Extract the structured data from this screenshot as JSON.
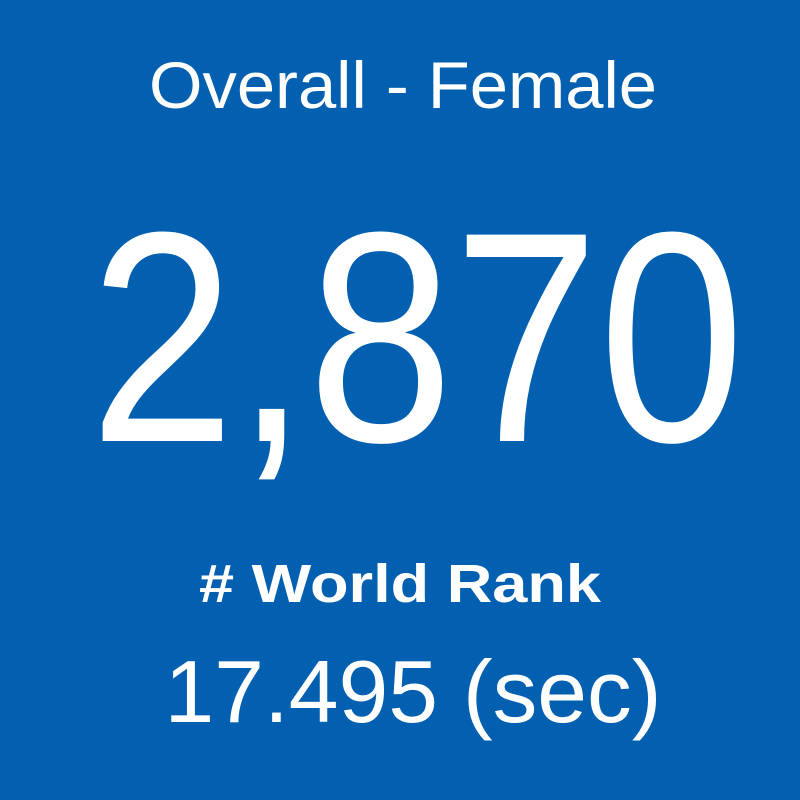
{
  "tile": {
    "title": "Overall - Female",
    "value": "2,870",
    "label": "# World Rank",
    "subtitle": "17.495 (sec)"
  }
}
